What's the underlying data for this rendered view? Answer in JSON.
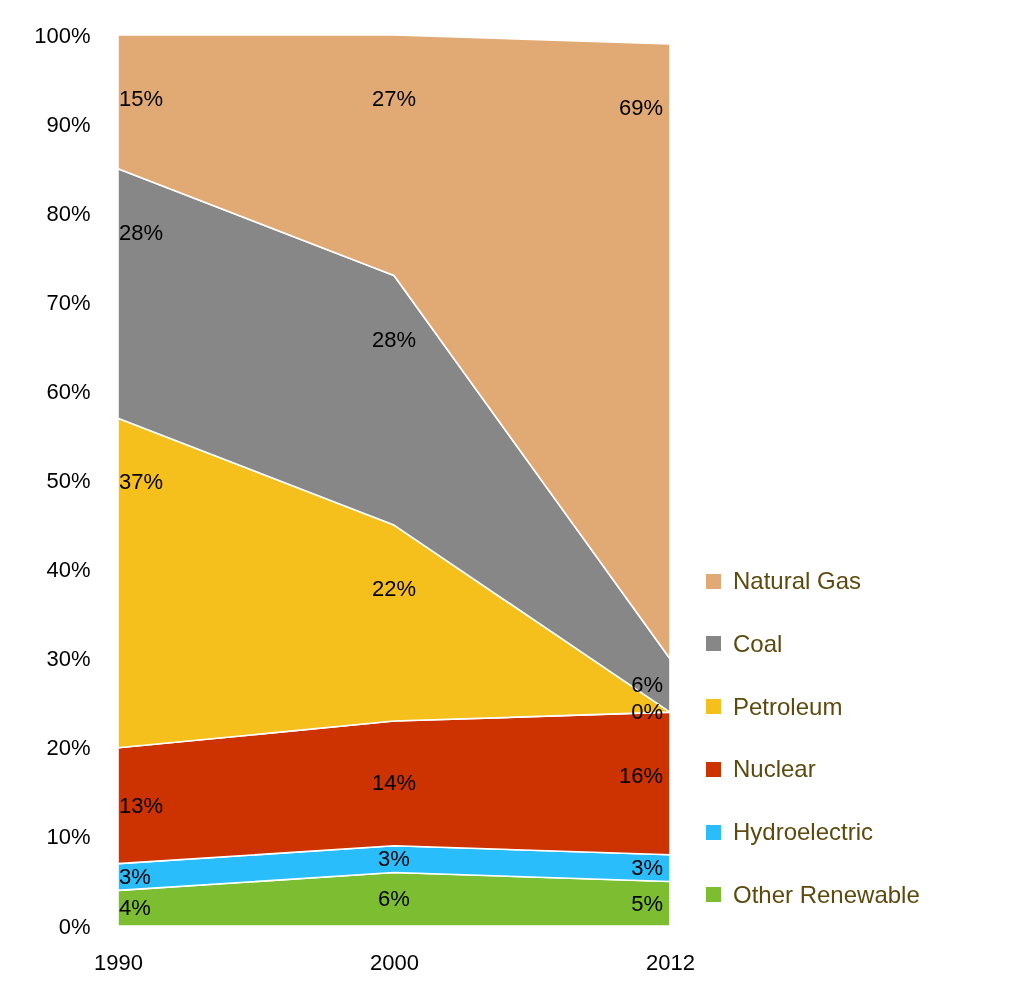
{
  "chart_data": {
    "type": "area",
    "stacked": true,
    "legend": "bottom right",
    "categories": [
      "1990",
      "2000",
      "2012"
    ],
    "ylim": [
      0,
      100
    ],
    "yticks": [
      {
        "value": 0,
        "label": "0%"
      },
      {
        "value": 10,
        "label": "10%"
      },
      {
        "value": 20,
        "label": "20%"
      },
      {
        "value": 30,
        "label": "30%"
      },
      {
        "value": 40,
        "label": "40%"
      },
      {
        "value": 50,
        "label": "50%"
      },
      {
        "value": 60,
        "label": "60%"
      },
      {
        "value": 70,
        "label": "70%"
      },
      {
        "value": 80,
        "label": "80%"
      },
      {
        "value": 90,
        "label": "90%"
      },
      {
        "value": 100,
        "label": "100%"
      }
    ],
    "series": [
      {
        "name": "Other Renewable",
        "color": "#7cbd31",
        "values": [
          4,
          6,
          5
        ],
        "value_labels": [
          "4%",
          "6%",
          "5%"
        ]
      },
      {
        "name": "Hydroelectric",
        "color": "#29bdfb",
        "values": [
          3,
          3,
          3
        ],
        "value_labels": [
          "3%",
          "3%",
          "3%"
        ]
      },
      {
        "name": "Nuclear",
        "color": "#cc3300",
        "values": [
          13,
          14,
          16
        ],
        "value_labels": [
          "13%",
          "14%",
          "16%"
        ]
      },
      {
        "name": "Petroleum",
        "color": "#f5bf1c",
        "values": [
          37,
          22,
          0
        ],
        "value_labels": [
          "37%",
          "22%",
          "0%"
        ]
      },
      {
        "name": "Coal",
        "color": "#878787",
        "values": [
          28,
          28,
          6
        ],
        "value_labels": [
          "28%",
          "28%",
          "6%"
        ]
      },
      {
        "name": "Natural Gas",
        "color": "#e1aa74",
        "values": [
          15,
          27,
          69
        ],
        "value_labels": [
          "15%",
          "27%",
          "69%"
        ]
      }
    ]
  }
}
